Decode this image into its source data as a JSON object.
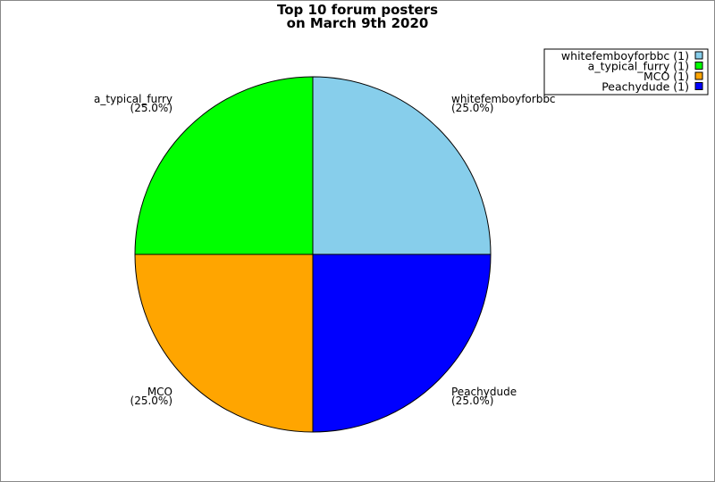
{
  "chart_data": {
    "type": "pie",
    "title": [
      "Top 10 forum posters",
      "on March 9th 2020"
    ],
    "slices": [
      {
        "label": "whitefemboyforbbc",
        "value": 1,
        "percent": "(25.0%)",
        "legend": "whitefemboyforbbc (1)",
        "color": "#87CEEB"
      },
      {
        "label": "Peachydude",
        "value": 1,
        "percent": "(25.0%)",
        "legend": "Peachydude (1)",
        "color": "#0000FF"
      },
      {
        "label": "MCO",
        "value": 1,
        "percent": "(25.0%)",
        "legend": "MCO (1)",
        "color": "#FFA500"
      },
      {
        "label": "a_typical_furry",
        "value": 1,
        "percent": "(25.0%)",
        "legend": "a_typical_furry (1)",
        "color": "#00FF00"
      }
    ],
    "legend_order": [
      0,
      3,
      2,
      1
    ],
    "legend_placement": "top-right",
    "start_angle": "12 o'clock",
    "direction": "clockwise"
  }
}
